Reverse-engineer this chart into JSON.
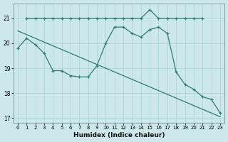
{
  "xlabel": "Humidex (Indice chaleur)",
  "ylabel": "",
  "bg_color": "#cce8ea",
  "grid_color": "#b0d4d6",
  "line_color": "#2e7d72",
  "xlim": [
    -0.5,
    23.5
  ],
  "ylim": [
    16.8,
    21.6
  ],
  "yticks": [
    17,
    18,
    19,
    20,
    21
  ],
  "xticks": [
    0,
    1,
    2,
    3,
    4,
    5,
    6,
    7,
    8,
    9,
    10,
    11,
    12,
    13,
    14,
    15,
    16,
    17,
    18,
    19,
    20,
    21,
    22,
    23
  ],
  "series1_x": [
    1,
    2,
    3,
    4,
    5,
    6,
    7,
    8,
    9,
    10,
    11,
    12,
    13,
    14,
    15,
    16,
    17,
    18,
    19,
    20,
    21
  ],
  "series1_y": [
    21.0,
    21.0,
    21.0,
    21.0,
    21.0,
    21.0,
    21.0,
    21.0,
    21.0,
    21.0,
    21.0,
    21.0,
    21.0,
    21.0,
    21.35,
    21.0,
    21.0,
    21.0,
    21.0,
    21.0,
    21.0
  ],
  "series2_x": [
    0,
    1,
    2,
    3,
    4,
    5,
    6,
    7,
    8,
    9,
    10,
    11,
    12,
    13,
    14,
    15,
    16,
    17,
    18,
    19,
    20,
    21,
    22,
    23
  ],
  "series2_y": [
    19.8,
    20.2,
    19.95,
    19.6,
    18.9,
    18.9,
    18.7,
    18.65,
    18.65,
    19.1,
    20.0,
    20.65,
    20.65,
    20.4,
    20.25,
    20.55,
    20.65,
    20.4,
    18.85,
    18.35,
    18.15,
    17.85,
    17.75,
    17.2
  ],
  "series3_x": [
    0,
    1,
    2,
    3,
    4,
    5,
    6,
    7,
    8,
    9,
    10,
    11,
    12,
    13,
    14,
    15,
    16,
    17,
    18,
    19,
    20,
    21,
    22,
    23
  ],
  "series3_y": [
    20.5,
    20.35,
    20.2,
    20.05,
    19.9,
    19.75,
    19.6,
    19.45,
    19.3,
    19.15,
    19.0,
    18.85,
    18.7,
    18.55,
    18.4,
    18.25,
    18.1,
    17.95,
    17.8,
    17.65,
    17.5,
    17.35,
    17.2,
    17.05
  ]
}
